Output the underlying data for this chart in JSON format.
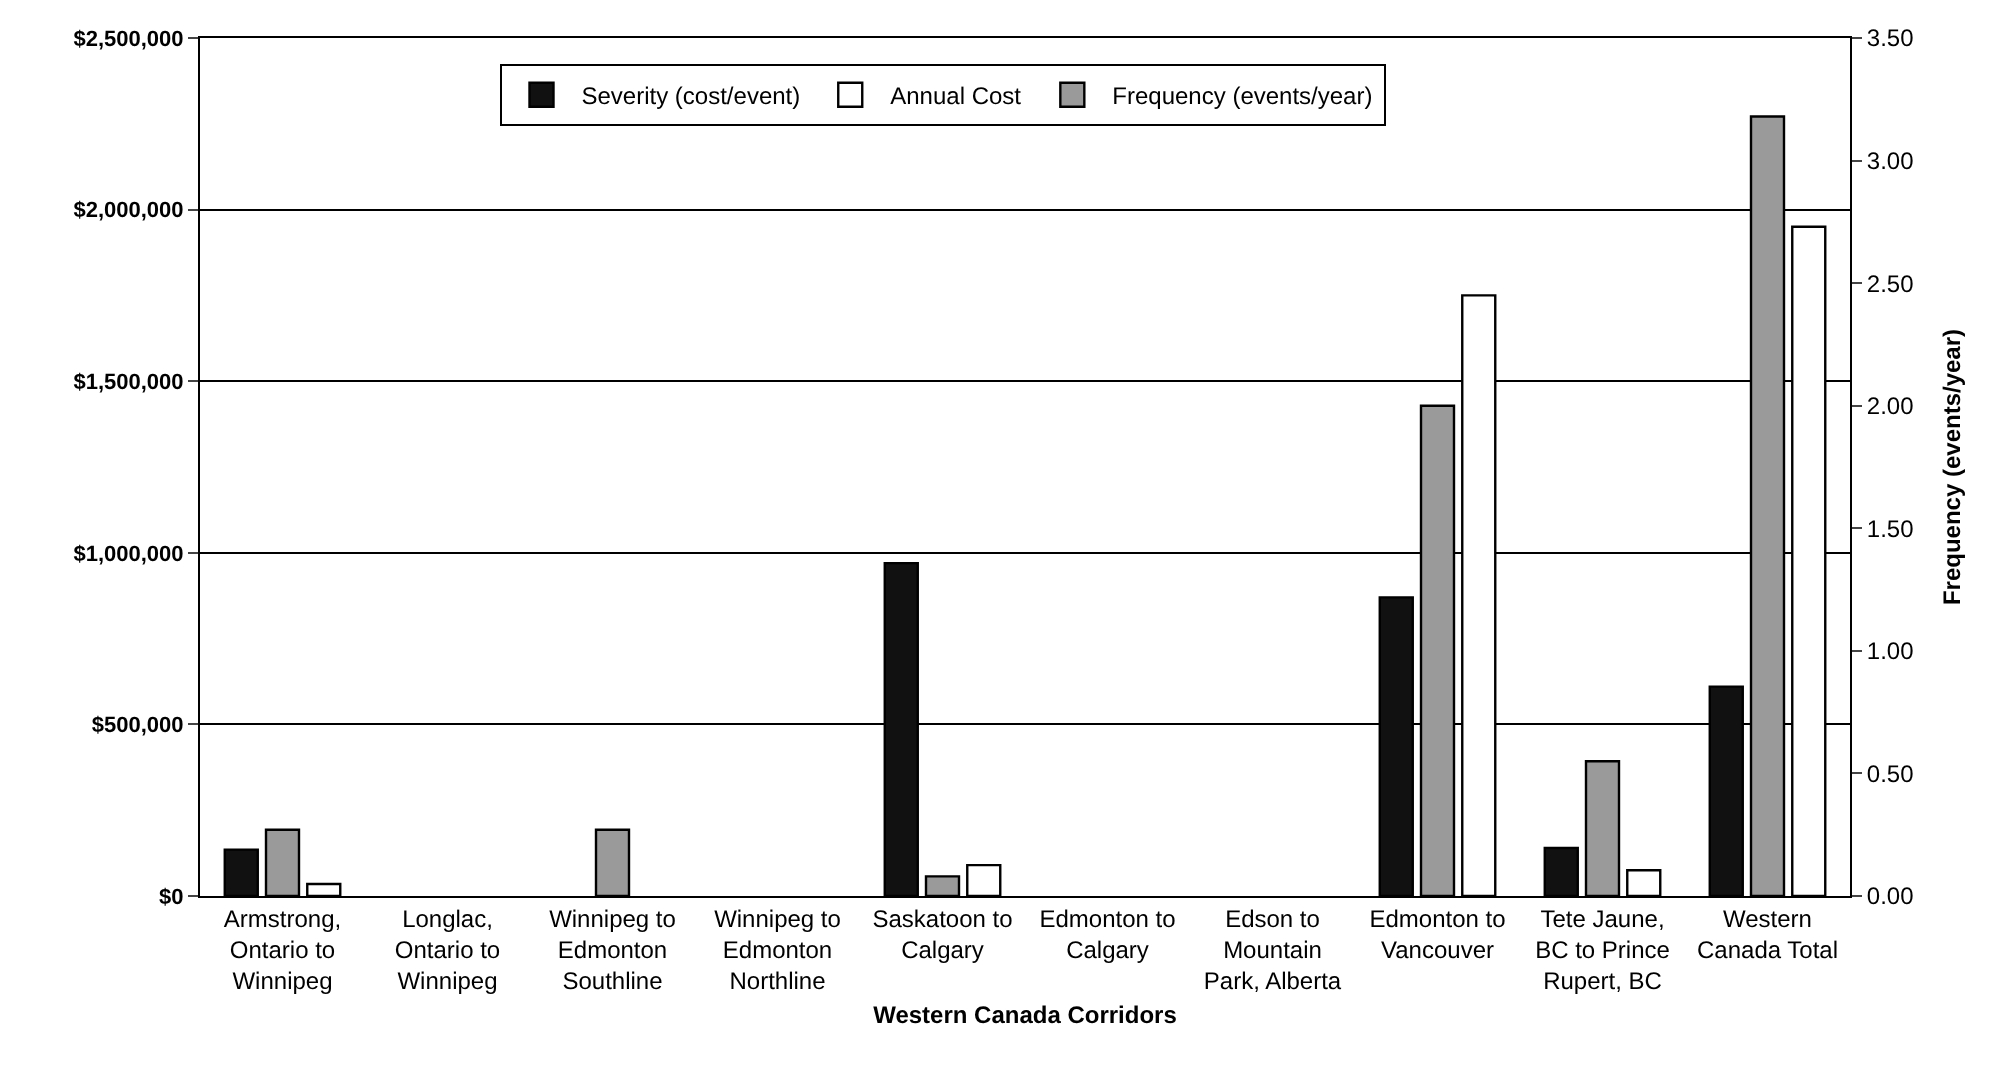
{
  "chart_data": {
    "type": "bar",
    "xlabel": "Western Canada Corridors",
    "y2label": "Frequency (events/year)",
    "categories": [
      "Armstrong,\nOntario to\nWinnipeg",
      "Longlac,\nOntario to\nWinnipeg",
      "Winnipeg to\nEdmonton\nSouthline",
      "Winnipeg to\nEdmonton\nNorthline",
      "Saskatoon to\nCalgary",
      "Edmonton to\nCalgary",
      "Edson to\nMountain\nPark, Alberta",
      "Edmonton to\nVancouver",
      "Tete Jaune,\nBC to Prince\nRupert, BC",
      "Western\nCanada Total"
    ],
    "series": [
      {
        "name": "Severity (cost/event)",
        "color": "#111111",
        "values": [
          135000,
          0,
          0,
          0,
          970000,
          0,
          0,
          870000,
          140000,
          610000
        ]
      },
      {
        "name": "Frequency (events/year)",
        "color": "#9a9a9a",
        "axis": "y2",
        "values": [
          0.27,
          0,
          0.27,
          0,
          0.08,
          0,
          0,
          2.0,
          0.55,
          3.18
        ]
      },
      {
        "name": "Annual Cost",
        "color": "#ffffff",
        "values": [
          35000,
          0,
          0,
          0,
          90000,
          0,
          0,
          1750000,
          75000,
          1950000
        ]
      }
    ],
    "ylim": [
      0,
      2500000
    ],
    "yticks": [
      {
        "value": 0,
        "label": "$0"
      },
      {
        "value": 500000,
        "label": "$500,000"
      },
      {
        "value": 1000000,
        "label": "$1,000,000"
      },
      {
        "value": 1500000,
        "label": "$1,500,000"
      },
      {
        "value": 2000000,
        "label": "$2,000,000"
      },
      {
        "value": 2500000,
        "label": "$2,500,000"
      }
    ],
    "y2lim": [
      0,
      3.5
    ],
    "y2ticks": [
      {
        "value": 0,
        "label": "0.00"
      },
      {
        "value": 0.5,
        "label": "0.50"
      },
      {
        "value": 1,
        "label": "1.00"
      },
      {
        "value": 1.5,
        "label": "1.50"
      },
      {
        "value": 2,
        "label": "2.00"
      },
      {
        "value": 2.5,
        "label": "2.50"
      },
      {
        "value": 3,
        "label": "3.00"
      },
      {
        "value": 3.5,
        "label": "3.50"
      }
    ],
    "grid": "y",
    "legend": "top"
  }
}
